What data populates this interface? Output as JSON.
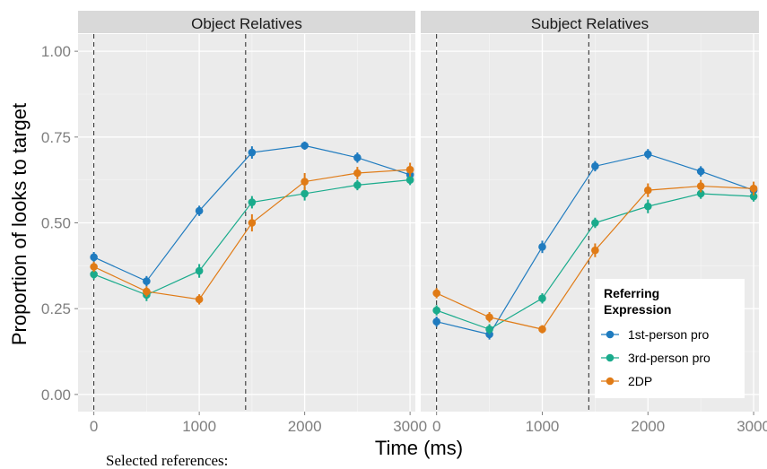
{
  "chart_data": {
    "type": "line",
    "xlabel": "Time (ms)",
    "ylabel": "Proportion of looks to target",
    "xlim": [
      -150,
      3050
    ],
    "ylim": [
      -0.05,
      1.05
    ],
    "xticks": [
      0,
      1000,
      2000,
      3000
    ],
    "xtick_labels": [
      "0",
      "1000",
      "2000",
      "3000"
    ],
    "yticks": [
      0,
      0.25,
      0.5,
      0.75,
      1.0
    ],
    "ytick_labels": [
      "0.00",
      "0.25",
      "0.50",
      "0.75",
      "1.00"
    ],
    "grid": true,
    "legend": {
      "title_lines": [
        "Referring",
        "Expression"
      ],
      "position": "bottom-right"
    },
    "series_style": [
      {
        "name": "1st-person pro",
        "color": "#1f7bbf"
      },
      {
        "name": "3rd-person pro",
        "color": "#1aab8c"
      },
      {
        "name": "2DP",
        "color": "#e07b16"
      }
    ],
    "x": [
      0,
      500,
      1000,
      1500,
      2000,
      2500,
      3000
    ],
    "panels": [
      {
        "title": "Object Relatives",
        "vlines": [
          0,
          1440
        ],
        "series": [
          {
            "name": "1st-person pro",
            "values": [
              0.4,
              0.33,
              0.535,
              0.705,
              0.725,
              0.69,
              0.64
            ],
            "errors": [
              0.015,
              0.015,
              0.015,
              0.018,
              0.012,
              0.015,
              0.015
            ]
          },
          {
            "name": "3rd-person pro",
            "values": [
              0.35,
              0.29,
              0.36,
              0.56,
              0.585,
              0.61,
              0.625
            ],
            "errors": [
              0.015,
              0.018,
              0.02,
              0.018,
              0.02,
              0.015,
              0.015
            ]
          },
          {
            "name": "2DP",
            "values": [
              0.372,
              0.3,
              0.277,
              0.5,
              0.62,
              0.645,
              0.655
            ],
            "errors": [
              0.015,
              0.015,
              0.015,
              0.025,
              0.025,
              0.018,
              0.02
            ]
          }
        ]
      },
      {
        "title": "Subject Relatives",
        "vlines": [
          0,
          1440
        ],
        "series": [
          {
            "name": "1st-person pro",
            "values": [
              0.212,
              0.175,
              0.43,
              0.665,
              0.7,
              0.65,
              0.595
            ],
            "errors": [
              0.015,
              0.015,
              0.018,
              0.015,
              0.015,
              0.015,
              0.015
            ]
          },
          {
            "name": "3rd-person pro",
            "values": [
              0.245,
              0.19,
              0.28,
              0.5,
              0.548,
              0.585,
              0.577
            ],
            "errors": [
              0.015,
              0.015,
              0.015,
              0.015,
              0.02,
              0.015,
              0.015
            ]
          },
          {
            "name": "2DP",
            "values": [
              0.295,
              0.225,
              0.19,
              0.42,
              0.595,
              0.607,
              0.6
            ],
            "errors": [
              0.015,
              0.015,
              0.012,
              0.02,
              0.02,
              0.018,
              0.02
            ]
          }
        ]
      }
    ]
  },
  "caption": "Selected references:"
}
